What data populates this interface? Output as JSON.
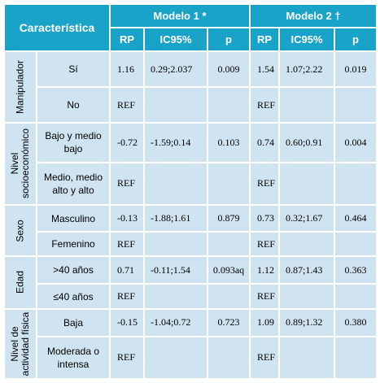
{
  "header": {
    "caracteristica": "Característica",
    "modelo1": "Modelo 1 *",
    "modelo2": "Modelo 2 †",
    "subcols": [
      "RP",
      "IC95%",
      "p",
      "RP",
      "IC95%",
      "p"
    ]
  },
  "groups": [
    {
      "label_lines": [
        "Manipulador"
      ],
      "rows": [
        {
          "category": "Sí",
          "m1": [
            "1.16",
            "0.29;2.037",
            "0.009"
          ],
          "m2": [
            "1.54",
            "1.07;2.22",
            "0.019"
          ]
        },
        {
          "category": "No",
          "m1": [
            "REF",
            "",
            ""
          ],
          "m2": [
            "REF",
            "",
            ""
          ]
        }
      ]
    },
    {
      "label_lines": [
        "Nivel",
        "socioeconómico"
      ],
      "rows": [
        {
          "category": "Bajo y medio bajo",
          "m1": [
            "-0.72",
            "-1.59;0.14",
            "0.103"
          ],
          "m2": [
            "0.74",
            "0.60;0.91",
            "0.004"
          ]
        },
        {
          "category": "Medio, medio alto y alto",
          "m1": [
            "REF",
            "",
            ""
          ],
          "m2": [
            "REF",
            "",
            ""
          ]
        }
      ]
    },
    {
      "label_lines": [
        "Sexo"
      ],
      "rows": [
        {
          "category": "Masculino",
          "m1": [
            "-0.13",
            "-1.88;1.61",
            "0.879"
          ],
          "m2": [
            "0.73",
            "0.32;1.67",
            "0.464"
          ]
        },
        {
          "category": "Femenino",
          "m1": [
            "REF",
            "",
            ""
          ],
          "m2": [
            "REF",
            "",
            ""
          ]
        }
      ]
    },
    {
      "label_lines": [
        "Edad"
      ],
      "rows": [
        {
          "category": ">40 años",
          "m1": [
            "0.71",
            "-0.11;1.54",
            "0.093aq"
          ],
          "m2": [
            "1.12",
            "0.87;1.43",
            "0.363"
          ]
        },
        {
          "category": "≤40 años",
          "m1": [
            "REF",
            "",
            ""
          ],
          "m2": [
            "REF",
            "",
            ""
          ]
        }
      ]
    },
    {
      "label_lines": [
        "Nivel de",
        "actividad física"
      ],
      "rows": [
        {
          "category": "Baja",
          "m1": [
            "-0.15",
            "-1.04;0.72",
            "0.723"
          ],
          "m2": [
            "1.09",
            "0.89;1.32",
            "0.380"
          ]
        },
        {
          "category": "Moderada o intensa",
          "m1": [
            "REF",
            "",
            ""
          ],
          "m2": [
            "REF",
            "",
            ""
          ]
        }
      ]
    }
  ]
}
